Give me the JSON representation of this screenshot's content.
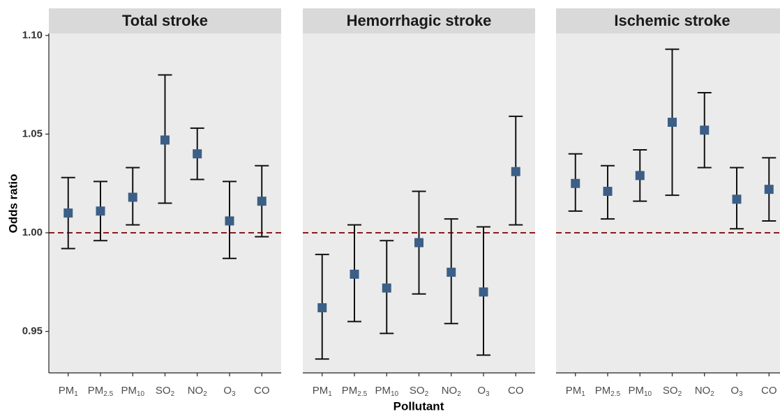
{
  "chart_data": {
    "type": "errorbar",
    "y_label": "Odds ratio",
    "x_label": "Pollutant",
    "categories": [
      {
        "main": "PM",
        "sub": "1"
      },
      {
        "main": "PM",
        "sub": "2.5"
      },
      {
        "main": "PM",
        "sub": "10"
      },
      {
        "main": "SO",
        "sub": "2"
      },
      {
        "main": "NO",
        "sub": "2"
      },
      {
        "main": "O",
        "sub": "3"
      },
      {
        "main": "CO"
      }
    ],
    "ylim": [
      0.929,
      1.101
    ],
    "yticks": [
      {
        "value": 0.95,
        "label": "0.95"
      },
      1.05,
      {
        "value": 1,
        "label": "1.00"
      },
      {
        "value": 1.1,
        "label": "1.10"
      }
    ],
    "reference_line": 1,
    "reference_color": "#8b1a1a",
    "color": "#3b5f86",
    "panels": [
      {
        "title": "Total stroke",
        "values": [
          1.01,
          1.011,
          1.018,
          1.047,
          1.04,
          1.006,
          1.016
        ],
        "lower": [
          0.992,
          0.996,
          1.004,
          1.015,
          1.027,
          0.987,
          0.998
        ],
        "upper": [
          1.028,
          1.026,
          1.033,
          1.08,
          1.053,
          1.026,
          1.034
        ]
      },
      {
        "title": "Hemorrhagic stroke",
        "values": [
          0.962,
          0.979,
          0.972,
          0.995,
          0.98,
          0.97,
          1.031
        ],
        "lower": [
          0.936,
          0.955,
          0.949,
          0.969,
          0.954,
          0.938,
          1.004
        ],
        "upper": [
          0.989,
          1.004,
          0.996,
          1.021,
          1.007,
          1.003,
          1.059
        ]
      },
      {
        "title": "Ischemic stroke",
        "values": [
          1.025,
          1.021,
          1.029,
          1.056,
          1.052,
          1.017,
          1.022
        ],
        "lower": [
          1.011,
          1.007,
          1.016,
          1.019,
          1.033,
          1.002,
          1.006
        ],
        "upper": [
          1.04,
          1.034,
          1.042,
          1.093,
          1.071,
          1.033,
          1.038
        ]
      }
    ]
  }
}
